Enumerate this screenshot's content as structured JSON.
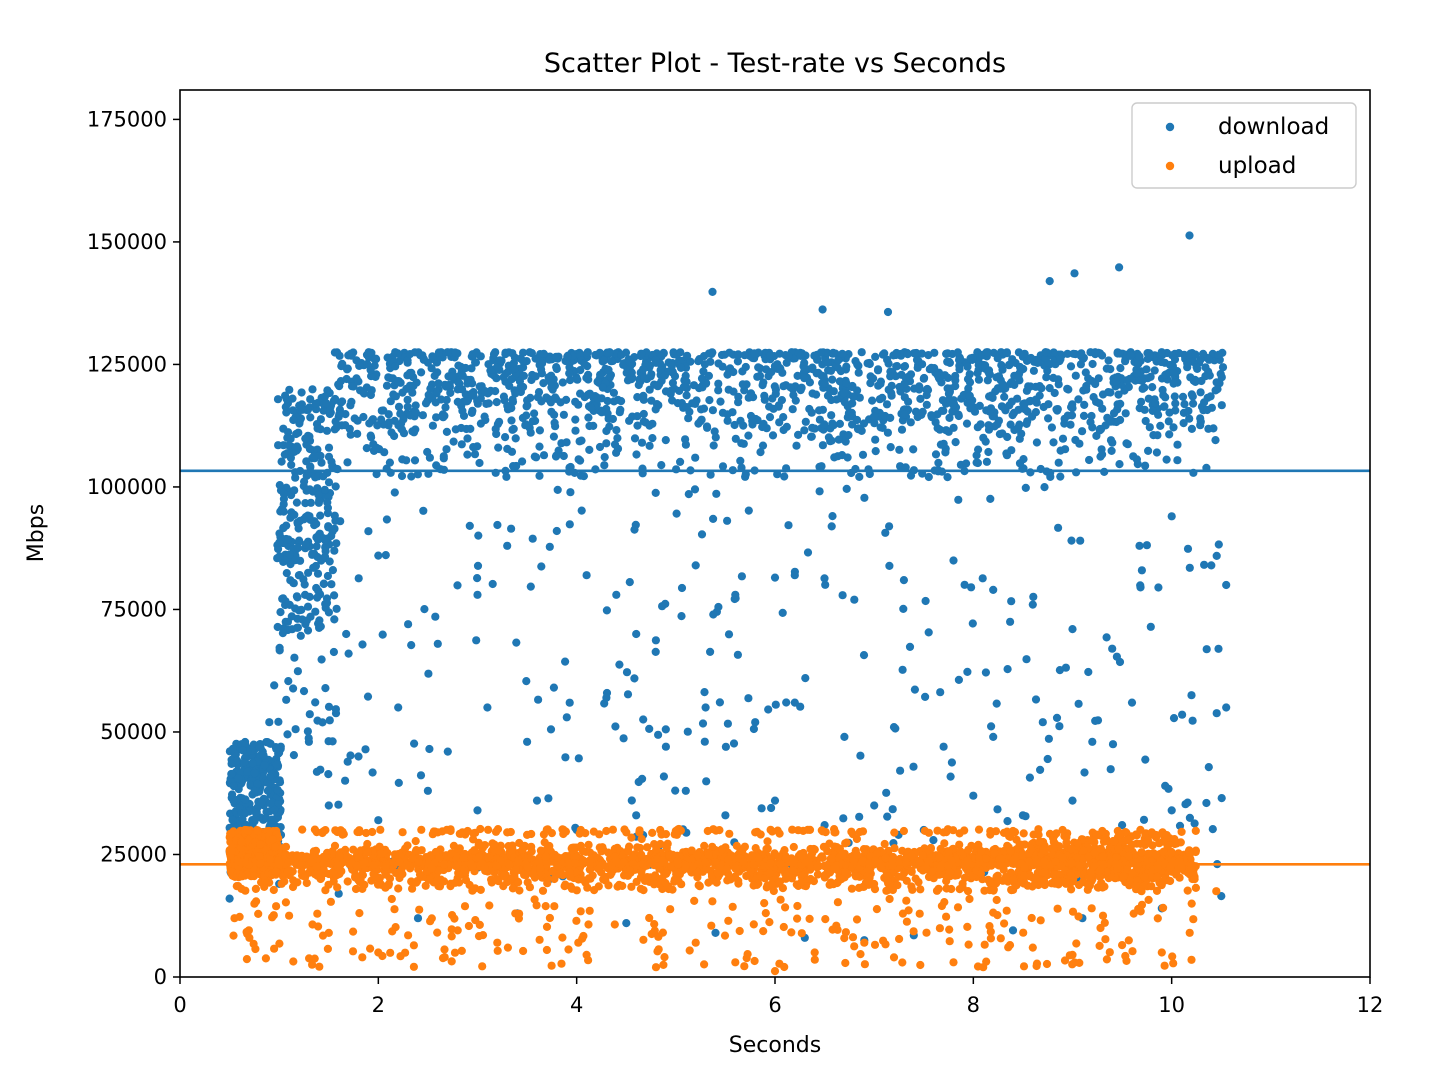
{
  "chart_data": {
    "type": "scatter",
    "title": "Scatter Plot - Test-rate vs Seconds",
    "xlabel": "Seconds",
    "ylabel": "Mbps",
    "xlim": [
      0,
      12
    ],
    "ylim": [
      0,
      181000
    ],
    "xticks": [
      0,
      2,
      4,
      6,
      8,
      10,
      12
    ],
    "yticks": [
      0,
      25000,
      50000,
      75000,
      100000,
      125000,
      150000,
      175000
    ],
    "xtick_labels": [
      "0",
      "2",
      "4",
      "6",
      "8",
      "10",
      "12"
    ],
    "ytick_labels": [
      "0",
      "25000",
      "50000",
      "75000",
      "100000",
      "125000",
      "150000",
      "175000"
    ],
    "grid": false,
    "legend_position": "top-right",
    "series": [
      {
        "name": "download",
        "color": "#1f77b4",
        "mean_line": 103300,
        "samples": [
          [
            5.37,
            139800
          ],
          [
            6.48,
            136200
          ],
          [
            7.14,
            135700
          ],
          [
            8.77,
            142000
          ],
          [
            9.02,
            143600
          ],
          [
            9.47,
            144800
          ],
          [
            10.18,
            151300
          ],
          [
            0.95,
            59500
          ],
          [
            1.2,
            74800
          ],
          [
            1.45,
            80200
          ],
          [
            1.7,
            66000
          ],
          [
            2.0,
            86000
          ],
          [
            2.3,
            72000
          ],
          [
            2.6,
            68000
          ],
          [
            3.0,
            78000
          ],
          [
            3.3,
            88000
          ],
          [
            3.8,
            91000
          ],
          [
            4.1,
            82000
          ],
          [
            4.4,
            78000
          ],
          [
            4.6,
            70000
          ],
          [
            5.2,
            84000
          ],
          [
            5.6,
            78000
          ],
          [
            6.0,
            81500
          ],
          [
            6.2,
            82000
          ],
          [
            6.8,
            77000
          ],
          [
            7.3,
            81000
          ],
          [
            7.8,
            85000
          ],
          [
            8.2,
            79000
          ],
          [
            8.6,
            76000
          ],
          [
            9.0,
            71000
          ],
          [
            9.4,
            67000
          ],
          [
            9.7,
            83000
          ],
          [
            10.0,
            94000
          ],
          [
            10.4,
            84000
          ],
          [
            10.55,
            80000
          ],
          [
            0.9,
            52000
          ],
          [
            1.3,
            48000
          ],
          [
            1.8,
            45000
          ],
          [
            2.2,
            55000
          ],
          [
            2.7,
            46000
          ],
          [
            3.1,
            55000
          ],
          [
            3.5,
            48000
          ],
          [
            3.9,
            53000
          ],
          [
            4.3,
            57000
          ],
          [
            4.9,
            47000
          ],
          [
            5.3,
            55000
          ],
          [
            5.8,
            52000
          ],
          [
            6.2,
            56000
          ],
          [
            6.7,
            49000
          ],
          [
            7.2,
            51000
          ],
          [
            7.7,
            47000
          ],
          [
            8.2,
            49000
          ],
          [
            8.7,
            52000
          ],
          [
            9.2,
            48000
          ],
          [
            9.6,
            56000
          ],
          [
            10.2,
            57500
          ],
          [
            10.55,
            55000
          ],
          [
            1.5,
            35000
          ],
          [
            2.0,
            32000
          ],
          [
            2.5,
            38000
          ],
          [
            3.0,
            34000
          ],
          [
            3.6,
            36000
          ],
          [
            4.0,
            30000
          ],
          [
            4.6,
            33000
          ],
          [
            5.1,
            38000
          ],
          [
            5.5,
            33000
          ],
          [
            6.0,
            36000
          ],
          [
            6.5,
            31000
          ],
          [
            7.0,
            35000
          ],
          [
            7.5,
            30000
          ],
          [
            8.0,
            37000
          ],
          [
            8.5,
            33000
          ],
          [
            9.0,
            36000
          ],
          [
            9.5,
            31000
          ],
          [
            10.0,
            34000
          ],
          [
            10.35,
            35500
          ],
          [
            0.5,
            16000
          ],
          [
            1.0,
            19000
          ],
          [
            1.6,
            17000
          ],
          [
            2.4,
            12000
          ],
          [
            3.4,
            13000
          ],
          [
            4.5,
            11000
          ],
          [
            5.4,
            9000
          ],
          [
            6.3,
            8000
          ],
          [
            6.9,
            7500
          ],
          [
            7.4,
            8500
          ],
          [
            8.4,
            9500
          ],
          [
            9.1,
            12000
          ],
          [
            9.9,
            14000
          ],
          [
            10.5,
            16500
          ]
        ]
      },
      {
        "name": "upload",
        "color": "#ff7f0e",
        "mean_line": 23000,
        "samples": [
          [
            0.55,
            12000
          ],
          [
            0.7,
            8000
          ],
          [
            1.1,
            12500
          ],
          [
            1.5,
            9000
          ],
          [
            2.0,
            5000
          ],
          [
            2.3,
            8500
          ],
          [
            2.8,
            9500
          ],
          [
            3.2,
            7000
          ],
          [
            3.7,
            5500
          ],
          [
            4.1,
            4500
          ],
          [
            4.8,
            2000
          ],
          [
            5.2,
            7000
          ],
          [
            5.6,
            3000
          ],
          [
            6.0,
            1200
          ],
          [
            6.4,
            5000
          ],
          [
            6.9,
            7000
          ],
          [
            7.2,
            4000
          ],
          [
            7.8,
            3000
          ],
          [
            8.1,
            2000
          ],
          [
            8.6,
            6000
          ],
          [
            9.0,
            4500
          ],
          [
            9.5,
            6500
          ],
          [
            9.9,
            5000
          ],
          [
            10.2,
            3500
          ],
          [
            10.45,
            17500
          ],
          [
            2.6,
            29500
          ],
          [
            2.9,
            29800
          ],
          [
            3.3,
            29500
          ],
          [
            3.5,
            29000
          ],
          [
            4.5,
            29500
          ],
          [
            5.0,
            29800
          ],
          [
            5.8,
            29500
          ],
          [
            6.6,
            29500
          ],
          [
            7.3,
            29800
          ],
          [
            7.7,
            29500
          ],
          [
            8.4,
            29800
          ],
          [
            8.9,
            30000
          ],
          [
            9.3,
            29800
          ],
          [
            9.8,
            29500
          ],
          [
            10.1,
            29600
          ]
        ]
      }
    ]
  }
}
